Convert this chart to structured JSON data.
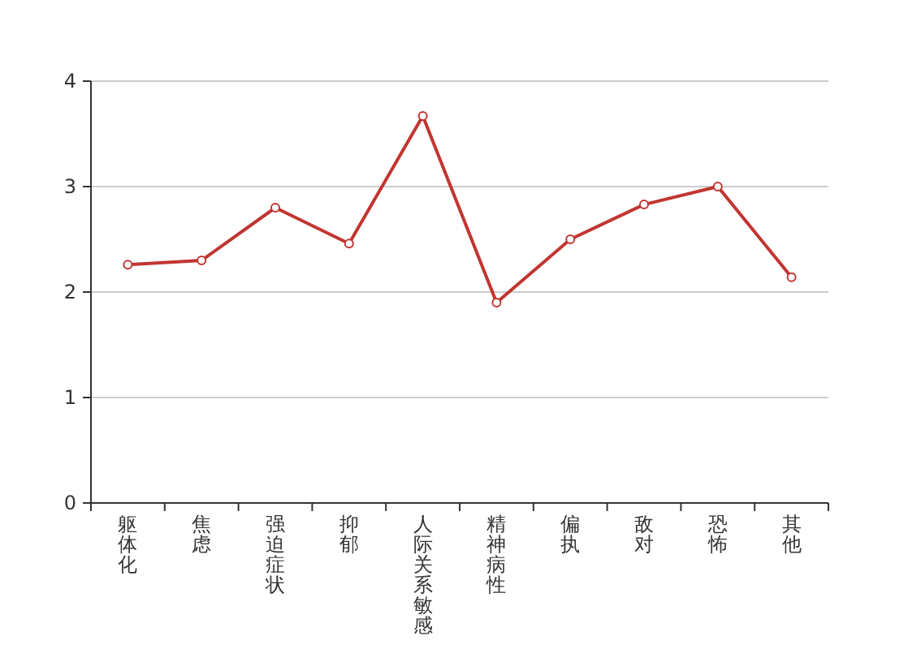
{
  "chart_data": {
    "type": "line",
    "categories": [
      "躯体化",
      "焦虑",
      "强迫症状",
      "抑郁",
      "人际关系敏感",
      "精神病性",
      "偏执",
      "敌对",
      "恐怖",
      "其他"
    ],
    "series": [
      {
        "color": "#c23531",
        "values": [
          2.26,
          2.3,
          2.8,
          2.46,
          3.67,
          1.9,
          2.5,
          2.83,
          3.0,
          2.14
        ]
      }
    ],
    "ylim": [
      0,
      4
    ],
    "yticks": [
      0,
      1,
      2,
      3,
      4
    ],
    "grid": "y",
    "marker": "circle",
    "line_style": "solid"
  }
}
